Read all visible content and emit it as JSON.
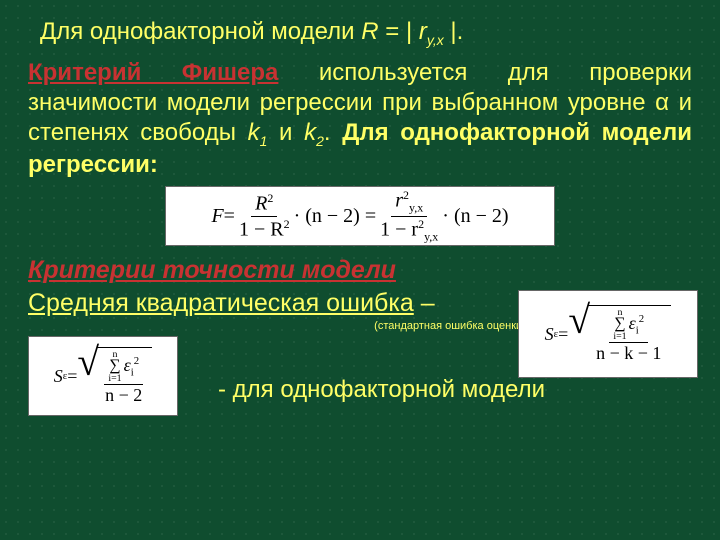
{
  "colors": {
    "background": "#0f4d2f",
    "text_yellow": "#ffff66",
    "text_red": "#c83232",
    "formula_bg": "#ffffff"
  },
  "line1": {
    "prefix": "Для однофакторной модели  ",
    "eq_lhs": "R",
    "eq_mid": " = | ",
    "eq_r": "r",
    "eq_sub": "y,x",
    "eq_end": " |."
  },
  "para": {
    "fisher_label": "Критерий Фишера",
    "body1": " используется для проверки значимости модели регрессии при выбранном уровне α и степенях свободы ",
    "k1": "k",
    "k1sub": "1",
    "and": " и ",
    "k2": "k",
    "k2sub": "2",
    "dot": ".  ",
    "bold_tail": "Для однофакторной модели регрессии:"
  },
  "formula1": {
    "F": "F",
    "eq": " = ",
    "num1": "R",
    "sup2": "2",
    "den1a": "1 − R",
    "dot_n2": " · (n − 2) = ",
    "num2": "r",
    "num2sub": "y,x",
    "den2a": "1 − r",
    "tail": " · (n − 2)"
  },
  "section2": "Критерии точности модели",
  "subhead": "Средняя квадратическая ошибка",
  "dash": " –",
  "small_note": "(стандартная ошибка оценки)",
  "formula_small": {
    "S": "S",
    "Ssub": "ε",
    "eq": " = ",
    "sum_top": "n",
    "sum_bot": "i=1",
    "eps": "ε",
    "isub": "i",
    "den_f2": "n − 2",
    "den_f3": "n − k − 1"
  },
  "bottom_text": "- для однофакторной модели"
}
